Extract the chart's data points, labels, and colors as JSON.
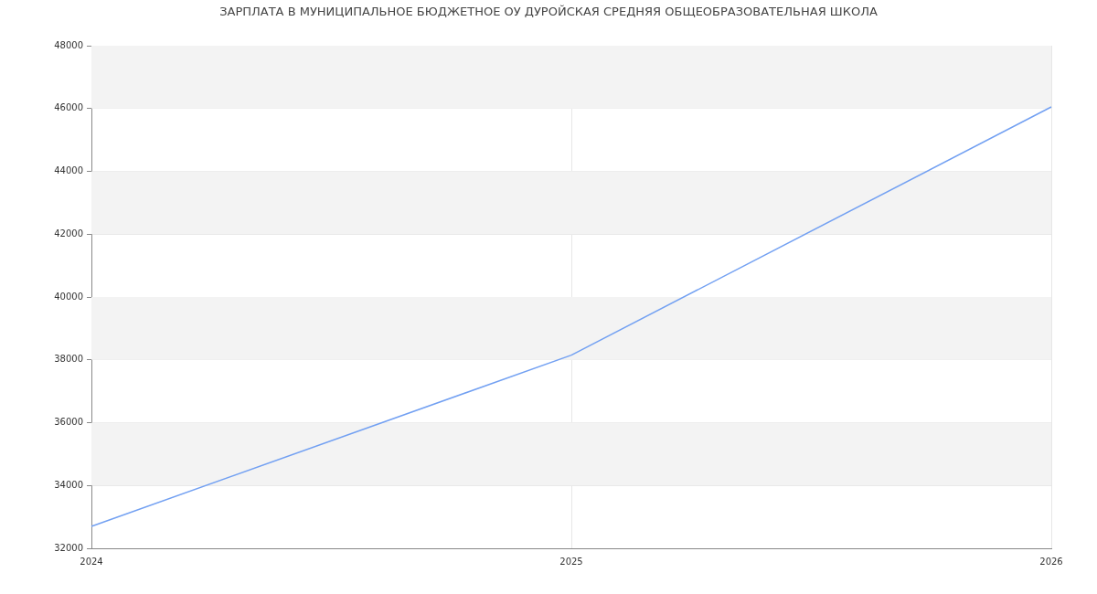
{
  "chart_data": {
    "type": "line",
    "title": "ЗАРПЛАТА В МУНИЦИПАЛЬНОЕ БЮДЖЕТНОЕ ОУ ДУРОЙСКАЯ СРЕДНЯЯ ОБЩЕОБРАЗОВАТЕЛЬНАЯ ШКОЛА",
    "categories": [
      "2024",
      "2025",
      "2026"
    ],
    "values": [
      32700,
      38150,
      46050
    ],
    "color": "#72a0f2",
    "ylim": [
      32000,
      48000
    ],
    "yticks": [
      32000,
      34000,
      36000,
      38000,
      40000,
      42000,
      44000,
      46000,
      48000
    ],
    "grid": true,
    "legend": false,
    "marker": "none"
  }
}
